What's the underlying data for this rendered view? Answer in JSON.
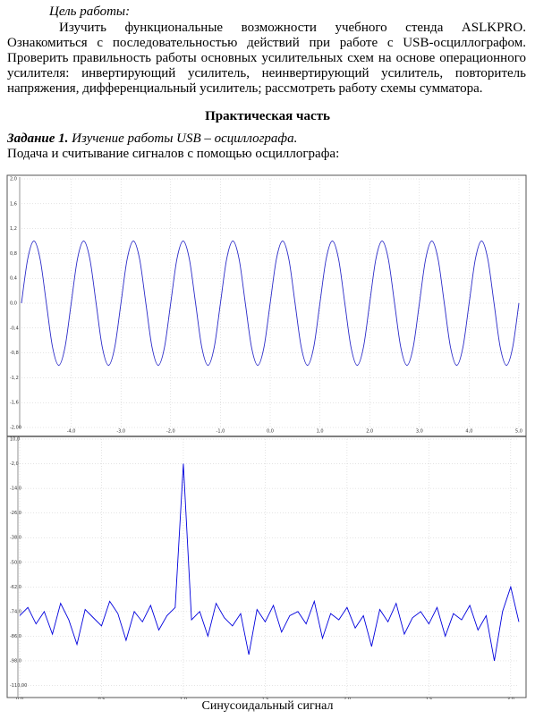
{
  "document": {
    "goal_label": "Цель работы:",
    "goal_text": "Изучить функциональные возможности учебного стенда ASLKPRO. Ознакомиться с последовательностью действий при работе с USB-осциллографом. Проверить правильность работы основных усилительных схем на основе операционного усилителя: инвертирующий усилитель, неинвертирующий усилитель, повторитель напряжения, дифференциальный усилитель; рассмотреть работу схемы сумматора.",
    "section_title": "Практическая часть",
    "task_label": "Задание 1.",
    "task_title": "Изучение работы USB – осциллографа.",
    "task_text": "Подача и считывание сигналов с помощью осциллографа:",
    "caption": "Синусоидальный сигнал"
  },
  "chart_data": [
    {
      "type": "line",
      "x": [
        -5,
        -4.875,
        -4.75,
        -4.625,
        -4.5,
        -4.375,
        -4.25,
        -4.125,
        -4,
        -3.875,
        -3.75,
        -3.625,
        -3.5,
        -3.375,
        -3.25,
        -3.125,
        -3,
        -2.875,
        -2.75,
        -2.625,
        -2.5,
        -2.375,
        -2.25,
        -2.125,
        -2,
        -1.875,
        -1.75,
        -1.625,
        -1.5,
        -1.375,
        -1.25,
        -1.125,
        -1,
        -0.875,
        -0.75,
        -0.625,
        -0.5,
        -0.375,
        -0.25,
        -0.125,
        0,
        0.125,
        0.25,
        0.375,
        0.5,
        0.625,
        0.75,
        0.875,
        1,
        1.125,
        1.25,
        1.375,
        1.5,
        1.625,
        1.75,
        1.875,
        2,
        2.125,
        2.25,
        2.375,
        2.5,
        2.625,
        2.75,
        2.875,
        3,
        3.125,
        3.25,
        3.375,
        3.5,
        3.625,
        3.75,
        3.875,
        4,
        4.125,
        4.25,
        4.375,
        4.5,
        4.625,
        4.75,
        4.875,
        5
      ],
      "series": [
        {
          "color": "#2b2bc8",
          "values": [
            0,
            0.71,
            1,
            0.71,
            0,
            -0.71,
            -1,
            -0.71,
            0,
            0.71,
            1,
            0.71,
            0,
            -0.71,
            -1,
            -0.71,
            0,
            0.71,
            1,
            0.71,
            0,
            -0.71,
            -1,
            -0.71,
            0,
            0.71,
            1,
            0.71,
            0,
            -0.71,
            -1,
            -0.71,
            0,
            0.71,
            1,
            0.71,
            0,
            -0.71,
            -1,
            -0.71,
            0,
            0.71,
            1,
            0.71,
            0,
            -0.71,
            -1,
            -0.71,
            0,
            0.71,
            1,
            0.71,
            0,
            -0.71,
            -1,
            -0.71,
            0,
            0.71,
            1,
            0.71,
            0,
            -0.71,
            -1,
            -0.71,
            0,
            0.71,
            1,
            0.71,
            0,
            -0.71,
            -1,
            -0.71,
            0,
            0.71,
            1,
            0.71,
            0,
            -0.71,
            -1,
            -0.71,
            0
          ]
        }
      ],
      "xlim": [
        -5,
        5
      ],
      "ylim": [
        -2,
        2
      ],
      "xticks": [
        {
          "value": -4,
          "label": "-4,0"
        },
        {
          "value": -3,
          "label": "-3,0"
        },
        {
          "value": -2,
          "label": "-2,0"
        },
        {
          "value": -1,
          "label": "-1,0"
        },
        {
          "value": 0,
          "label": "0,0"
        },
        {
          "value": 1,
          "label": "1,0"
        },
        {
          "value": 2,
          "label": "2,0"
        },
        {
          "value": 3,
          "label": "3,0"
        },
        {
          "value": 4,
          "label": "4,0"
        },
        {
          "value": 5,
          "label": "5,0"
        }
      ],
      "yticks": [
        {
          "value": 2,
          "label": "2,0"
        },
        {
          "value": 1.6,
          "label": "1,6"
        },
        {
          "value": 1.2,
          "label": "1,2"
        },
        {
          "value": 0.8,
          "label": "0,8"
        },
        {
          "value": 0.4,
          "label": "0,4"
        },
        {
          "value": 0,
          "label": "0,0"
        },
        {
          "value": -0.4,
          "label": "-0,4"
        },
        {
          "value": -0.8,
          "label": "-0,8"
        },
        {
          "value": -1.2,
          "label": "-1,2"
        },
        {
          "value": -1.6,
          "label": "-1,6"
        },
        {
          "value": -2,
          "label": "-2,00"
        }
      ],
      "grid": true
    },
    {
      "type": "line",
      "x": [
        0,
        0.05,
        0.1,
        0.15,
        0.2,
        0.25,
        0.3,
        0.35,
        0.4,
        0.45,
        0.5,
        0.55,
        0.6,
        0.65,
        0.7,
        0.75,
        0.8,
        0.85,
        0.9,
        0.95,
        1,
        1.05,
        1.1,
        1.15,
        1.2,
        1.25,
        1.3,
        1.35,
        1.4,
        1.45,
        1.5,
        1.55,
        1.6,
        1.65,
        1.7,
        1.75,
        1.8,
        1.85,
        1.9,
        1.95,
        2,
        2.05,
        2.1,
        2.15,
        2.2,
        2.25,
        2.3,
        2.35,
        2.4,
        2.45,
        2.5,
        2.55,
        2.6,
        2.65,
        2.7,
        2.75,
        2.8,
        2.85,
        2.9,
        2.95,
        3,
        3.05
      ],
      "series": [
        {
          "color": "#0000dd",
          "values": [
            -76,
            -72,
            -80,
            -74,
            -85,
            -70,
            -78,
            -90,
            -73,
            -77,
            -81,
            -69,
            -75,
            -88,
            -74,
            -79,
            -71,
            -83,
            -76,
            -72,
            -2,
            -78,
            -74,
            -86,
            -70,
            -77,
            -81,
            -75,
            -95,
            -73,
            -79,
            -71,
            -84,
            -76,
            -74,
            -80,
            -69,
            -87,
            -75,
            -78,
            -72,
            -82,
            -76,
            -91,
            -73,
            -79,
            -70,
            -85,
            -77,
            -74,
            -80,
            -72,
            -86,
            -75,
            -78,
            -71,
            -83,
            -76,
            -98,
            -74,
            -62,
            -79
          ]
        }
      ],
      "xlim": [
        0,
        3.05
      ],
      "ylim": [
        -115,
        10
      ],
      "xticks": [
        {
          "value": 0,
          "label": "0,0"
        },
        {
          "value": 0.5,
          "label": "0,5"
        },
        {
          "value": 1,
          "label": "1,0"
        },
        {
          "value": 1.5,
          "label": "1,5"
        },
        {
          "value": 2,
          "label": "2,0"
        },
        {
          "value": 2.5,
          "label": "2,5"
        },
        {
          "value": 3,
          "label": "3,0"
        }
      ],
      "yticks": [
        {
          "value": 10,
          "label": "10,0"
        },
        {
          "value": -2,
          "label": "-2,0"
        },
        {
          "value": -14,
          "label": "-14,0"
        },
        {
          "value": -26,
          "label": "-26,0"
        },
        {
          "value": -38,
          "label": "-38,0"
        },
        {
          "value": -50,
          "label": "-50,0"
        },
        {
          "value": -62,
          "label": "-62,0"
        },
        {
          "value": -74,
          "label": "-74,0"
        },
        {
          "value": -86,
          "label": "-86,0"
        },
        {
          "value": -98,
          "label": "-98,0"
        },
        {
          "value": -110,
          "label": "-110,00"
        }
      ],
      "grid": true
    }
  ]
}
